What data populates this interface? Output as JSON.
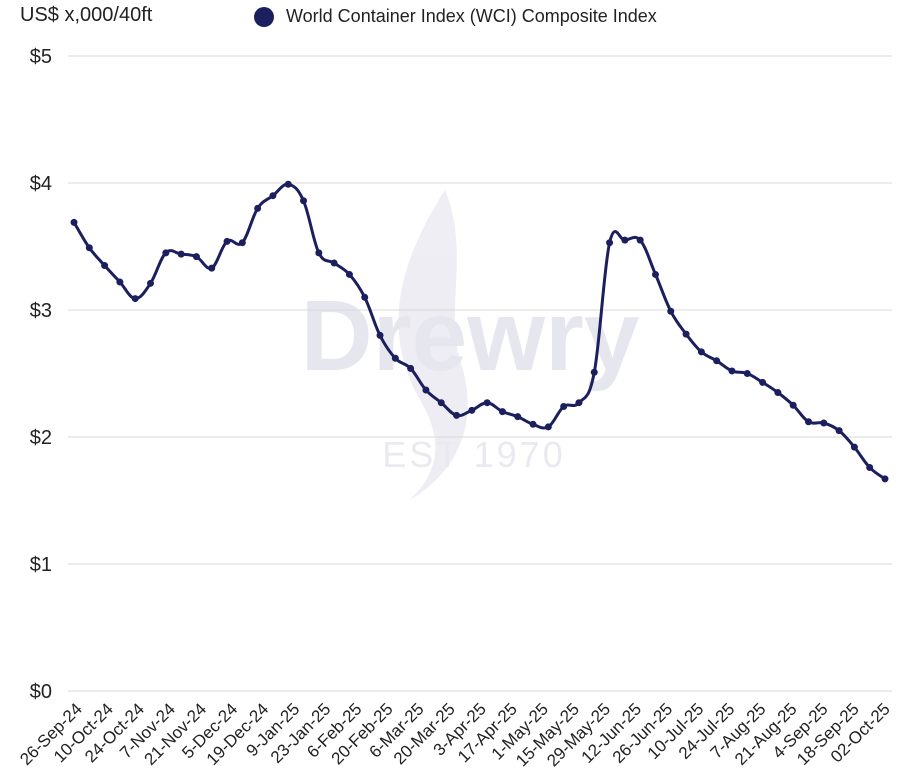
{
  "chart_data": {
    "type": "line",
    "ylabel": "US$ x,000/40ft",
    "ylim": [
      0,
      5
    ],
    "yticks": [
      0,
      1,
      2,
      3,
      4,
      5
    ],
    "ytick_labels": [
      "$0",
      "$1",
      "$2",
      "$3",
      "$4",
      "$5"
    ],
    "x_tick_labels": [
      "26-Sep-24",
      "10-Oct-24",
      "24-Oct-24",
      "7-Nov-24",
      "21-Nov-24",
      "5-Dec-24",
      "19-Dec-24",
      "9-Jan-25",
      "23-Jan-25",
      "6-Feb-25",
      "20-Feb-25",
      "6-Mar-25",
      "20-Mar-25",
      "3-Apr-25",
      "17-Apr-25",
      "1-May-25",
      "15-May-25",
      "29-May-25",
      "12-Jun-25",
      "26-Jun-25",
      "10-Jul-25",
      "24-Jul-25",
      "7-Aug-25",
      "21-Aug-25",
      "4-Sep-25",
      "18-Sep-25",
      "02-Oct-25"
    ],
    "grid": true,
    "legend_position": "top",
    "series": [
      {
        "name": "World Container Index (WCI) Composite Index",
        "color": "#1c1f5e",
        "values": [
          3.69,
          3.49,
          3.35,
          3.22,
          3.09,
          3.21,
          3.45,
          3.44,
          3.42,
          3.33,
          3.54,
          3.53,
          3.8,
          3.9,
          3.99,
          3.86,
          3.45,
          3.37,
          3.28,
          3.1,
          2.8,
          2.62,
          2.54,
          2.37,
          2.27,
          2.17,
          2.21,
          2.27,
          2.2,
          2.16,
          2.1,
          2.08,
          2.24,
          2.27,
          2.51,
          3.53,
          3.55,
          3.55,
          3.28,
          2.99,
          2.81,
          2.67,
          2.6,
          2.52,
          2.5,
          2.43,
          2.35,
          2.25,
          2.12,
          2.11,
          2.05,
          1.92,
          1.76,
          1.67
        ]
      }
    ]
  },
  "watermark": {
    "logo_text": "Drewry",
    "est_text": "EST 1970"
  }
}
